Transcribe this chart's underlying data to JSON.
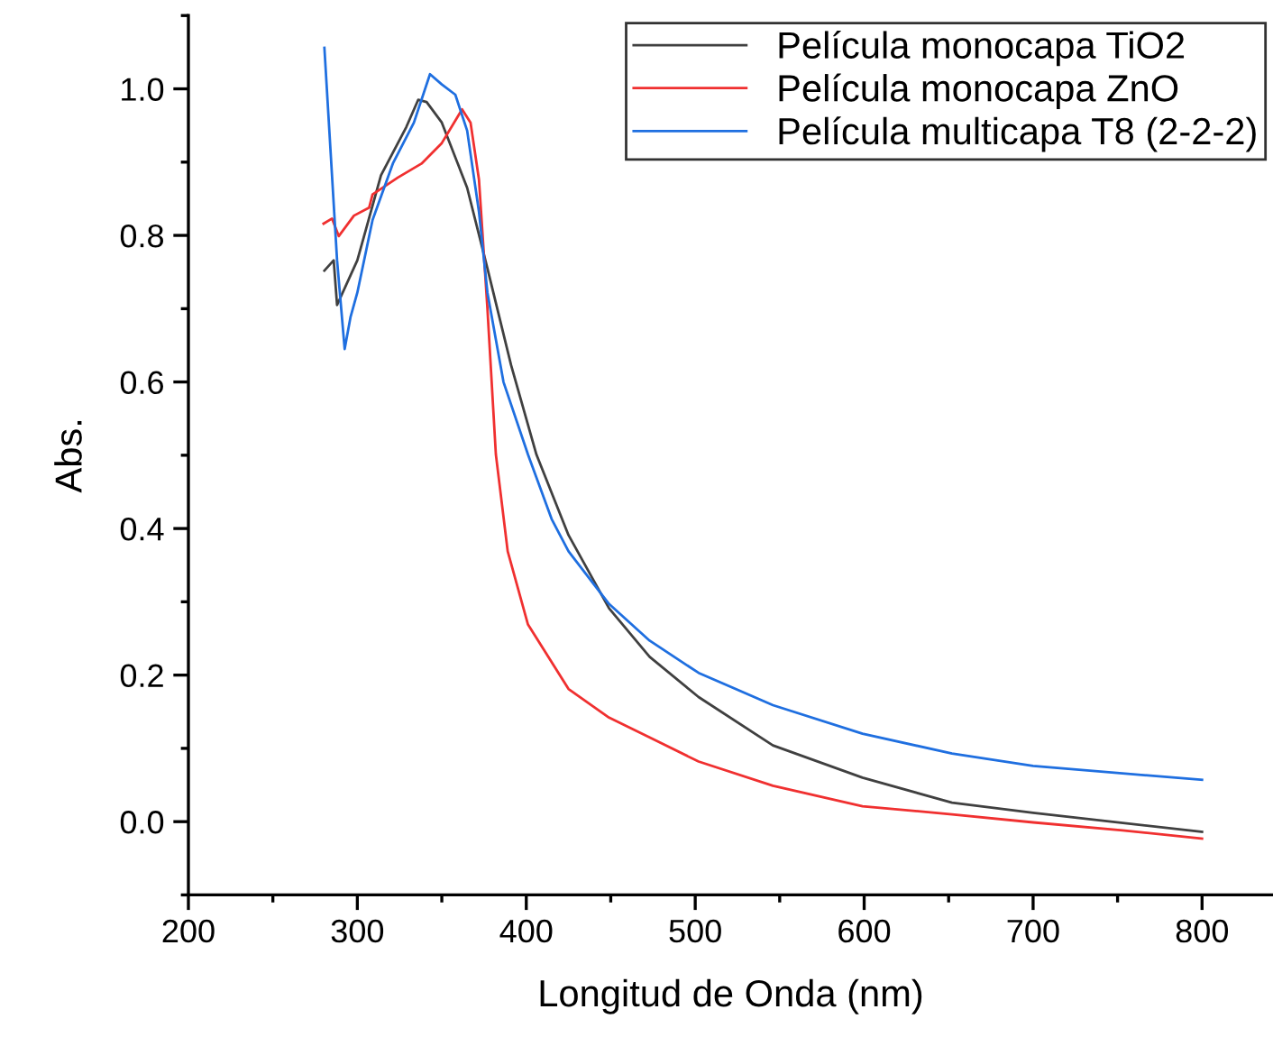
{
  "chart_data": {
    "type": "line",
    "xlabel": "Longitud de Onda (nm)",
    "ylabel": "Abs.",
    "xlim": [
      200,
      842
    ],
    "ylim": [
      -0.1,
      1.1
    ],
    "xticks": [
      200,
      {
        "value": 250,
        "label": null
      },
      300,
      {
        "value": 350,
        "label": null
      },
      400,
      {
        "value": 450,
        "label": null
      },
      500,
      {
        "value": 550,
        "label": null
      },
      600,
      {
        "value": 650,
        "label": null
      },
      700,
      {
        "value": 750,
        "label": null
      },
      800
    ],
    "yticks": [
      {
        "value": -0.1,
        "label": null
      },
      {
        "value": 0.0,
        "label": "0.0"
      },
      {
        "value": 0.1,
        "label": null
      },
      0.2,
      {
        "value": 0.3,
        "label": null
      },
      0.4,
      {
        "value": 0.5,
        "label": null
      },
      0.6,
      {
        "value": 0.7,
        "label": null
      },
      0.8,
      {
        "value": 0.9,
        "label": null
      },
      {
        "value": 1.0,
        "label": "1.0"
      },
      {
        "value": 1.1,
        "label": null
      }
    ],
    "grid": false,
    "legend": "top right",
    "marker": "none",
    "line_style": "solid",
    "series": [
      {
        "name": "Película monocapa TiO2",
        "color": "#404040",
        "x": [
          280.5,
          286,
          288,
          300,
          314,
          329,
          336,
          341,
          350,
          365,
          377,
          391,
          406,
          425,
          449,
          473,
          502,
          546,
          599,
          652,
          700,
          800
        ],
        "values": [
          0.752,
          0.766,
          0.705,
          0.766,
          0.882,
          0.948,
          0.985,
          0.982,
          0.954,
          0.865,
          0.755,
          0.623,
          0.501,
          0.391,
          0.291,
          0.225,
          0.17,
          0.104,
          0.06,
          0.026,
          0.012,
          -0.014
        ]
      },
      {
        "name": "Película monocapa ZnO",
        "color": "#f03030",
        "x": [
          280,
          285,
          289,
          298,
          307,
          309,
          324,
          338,
          350,
          362,
          367,
          372,
          377,
          382,
          389,
          401,
          425,
          449,
          473,
          502,
          546,
          599,
          652,
          700,
          753,
          800
        ],
        "values": [
          0.816,
          0.823,
          0.799,
          0.827,
          0.838,
          0.856,
          0.879,
          0.898,
          0.926,
          0.972,
          0.954,
          0.876,
          0.7,
          0.501,
          0.369,
          0.269,
          0.181,
          0.142,
          0.115,
          0.082,
          0.049,
          0.021,
          0.01,
          -0.001,
          -0.012,
          -0.023
        ]
      },
      {
        "name": "Película multicapa T8 (2-2-2)",
        "color": "#1f6fe0",
        "x": [
          280.5,
          288,
          292.5,
          296,
          300,
          309,
          321,
          333.5,
          343,
          350,
          358,
          365,
          372,
          377,
          386.5,
          401,
          415,
          425,
          449,
          473,
          502,
          546,
          599,
          652,
          700,
          800
        ],
        "values": [
          1.056,
          0.766,
          0.645,
          0.689,
          0.722,
          0.821,
          0.898,
          0.954,
          1.02,
          1.006,
          0.992,
          0.943,
          0.832,
          0.722,
          0.6,
          0.501,
          0.413,
          0.369,
          0.297,
          0.247,
          0.203,
          0.159,
          0.12,
          0.093,
          0.076,
          0.057
        ]
      }
    ]
  }
}
